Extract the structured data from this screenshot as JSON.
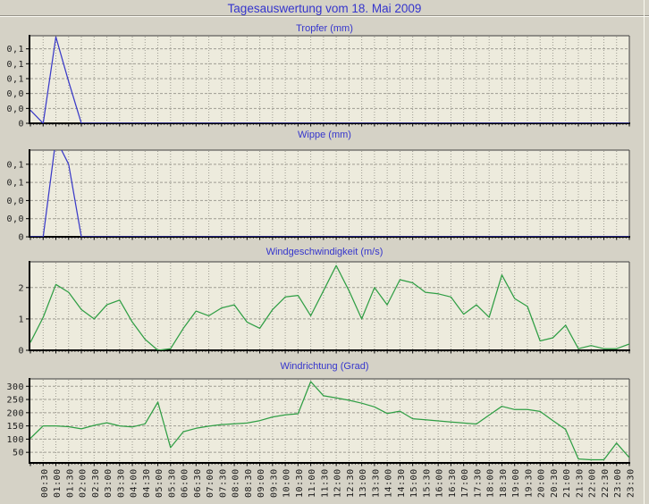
{
  "page": {
    "title": "Tagesauswertung vom 18. Mai 2009",
    "bg_color": "#d5d2c6",
    "plot_bg_color": "#edebdd",
    "grid_color": "#9e9c92",
    "axis_color": "#000000",
    "border_color": "#3f3f3f",
    "tick_text_color": "#1a1a1a",
    "title_color": "#3535cd"
  },
  "x_labels": [
    "00:30",
    "01:00",
    "01:30",
    "02:00",
    "02:30",
    "03:00",
    "03:30",
    "04:00",
    "04:30",
    "05:00",
    "05:30",
    "06:00",
    "06:30",
    "07:00",
    "07:30",
    "08:00",
    "08:30",
    "09:00",
    "09:30",
    "10:00",
    "10:30",
    "11:00",
    "11:30",
    "12:00",
    "12:30",
    "13:00",
    "13:30",
    "14:00",
    "14:30",
    "15:00",
    "15:30",
    "16:00",
    "16:30",
    "17:00",
    "17:30",
    "18:00",
    "18:30",
    "19:00",
    "19:30",
    "20:00",
    "20:30",
    "21:00",
    "21:30",
    "22:00",
    "22:30",
    "23:00",
    "23:30"
  ],
  "x_start_time": "00:00",
  "x_step_minutes": 30,
  "chart_data": [
    {
      "type": "line",
      "title": "Tropfer (mm)",
      "line_color": "#3a3ac8",
      "ymin": 0,
      "ymax": 0.147,
      "yticks": [
        0,
        0.025,
        0.05,
        0.075,
        0.1,
        0.125
      ],
      "ytick_labels": [
        "0",
        "0,0",
        "0,0",
        "0,1",
        "0,1",
        "0,1"
      ],
      "values": [
        0.022,
        0,
        0.145,
        0.07,
        0,
        0,
        0,
        0,
        0,
        0,
        0,
        0,
        0,
        0,
        0,
        0,
        0,
        0,
        0,
        0,
        0,
        0,
        0,
        0,
        0,
        0,
        0,
        0,
        0,
        0,
        0,
        0,
        0,
        0,
        0,
        0,
        0,
        0,
        0,
        0,
        0,
        0,
        0,
        0,
        0,
        0,
        0,
        0
      ]
    },
    {
      "type": "line",
      "title": "Wippe (mm)",
      "line_color": "#3a3ac8",
      "ymin": 0,
      "ymax": 0.1195,
      "yticks": [
        0,
        0.025,
        0.05,
        0.075,
        0.1
      ],
      "ytick_labels": [
        "0",
        "0,0",
        "0,0",
        "0,1",
        "0,1"
      ],
      "values": [
        0,
        0,
        0.135,
        0.1,
        0,
        0,
        0,
        0,
        0,
        0,
        0,
        0,
        0,
        0,
        0,
        0,
        0,
        0,
        0,
        0,
        0,
        0,
        0,
        0,
        0,
        0,
        0,
        0,
        0,
        0,
        0,
        0,
        0,
        0,
        0,
        0,
        0,
        0,
        0,
        0,
        0,
        0,
        0,
        0,
        0,
        0,
        0,
        0
      ]
    },
    {
      "type": "line",
      "title": "Windgeschwindigkeit (m/s)",
      "line_color": "#2f9e44",
      "ymin": 0,
      "ymax": 2.82,
      "yticks": [
        0,
        1,
        2
      ],
      "ytick_labels": [
        "0",
        "1",
        "2"
      ],
      "values": [
        0.25,
        1.05,
        2.1,
        1.85,
        1.3,
        1.0,
        1.45,
        1.6,
        0.9,
        0.35,
        0.0,
        0.05,
        0.7,
        1.25,
        1.1,
        1.35,
        1.45,
        0.9,
        0.7,
        1.3,
        1.7,
        1.75,
        1.1,
        1.9,
        2.7,
        1.9,
        1.0,
        2.0,
        1.45,
        2.25,
        2.15,
        1.85,
        1.8,
        1.7,
        1.15,
        1.45,
        1.05,
        2.4,
        1.65,
        1.4,
        0.3,
        0.4,
        0.8,
        0.05,
        0.15,
        0.05,
        0.05,
        0.2
      ]
    },
    {
      "type": "line",
      "title": "Windrichtung (Grad)",
      "line_color": "#2f9e44",
      "ymin": 10,
      "ymax": 328,
      "yticks": [
        50,
        100,
        150,
        200,
        250,
        300
      ],
      "ytick_labels": [
        "50",
        "100",
        "150",
        "200",
        "250",
        "300"
      ],
      "show_x_labels": true,
      "values": [
        103,
        150,
        150,
        147,
        139,
        152,
        162,
        150,
        146,
        158,
        240,
        68,
        128,
        141,
        149,
        155,
        158,
        161,
        170,
        184,
        192,
        196,
        318,
        264,
        256,
        247,
        236,
        222,
        197,
        206,
        177,
        173,
        169,
        165,
        161,
        157,
        191,
        224,
        212,
        212,
        205,
        170,
        137,
        25,
        22,
        22,
        85,
        30
      ]
    }
  ]
}
